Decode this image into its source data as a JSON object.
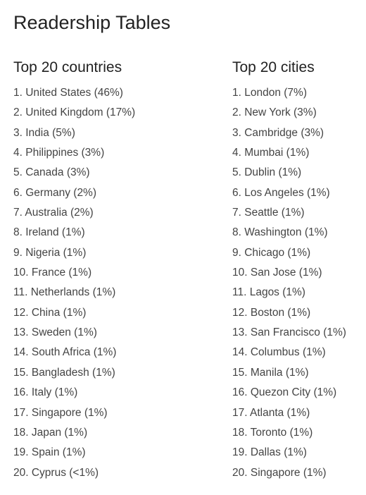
{
  "page": {
    "title": "Readership Tables"
  },
  "countries": {
    "heading": "Top 20 countries",
    "items": [
      "1. United States (46%)",
      "2. United Kingdom (17%)",
      "3. India (5%)",
      "4. Philippines (3%)",
      "5. Canada (3%)",
      "6. Germany (2%)",
      "7. Australia (2%)",
      "8. Ireland (1%)",
      "9. Nigeria (1%)",
      "10. France (1%)",
      "11. Netherlands (1%)",
      "12. China (1%)",
      "13. Sweden (1%)",
      "14. South Africa (1%)",
      "15. Bangladesh (1%)",
      "16. Italy (1%)",
      "17. Singapore (1%)",
      "18. Japan (1%)",
      "19. Spain (1%)",
      "20. Cyprus (<1%)"
    ]
  },
  "cities": {
    "heading": "Top 20 cities",
    "items": [
      "1. London (7%)",
      "2. New York (3%)",
      "3. Cambridge (3%)",
      "4. Mumbai (1%)",
      "5. Dublin (1%)",
      "6. Los Angeles (1%)",
      "7. Seattle (1%)",
      "8. Washington (1%)",
      "9. Chicago (1%)",
      "10. San Jose (1%)",
      "11. Lagos (1%)",
      "12. Boston (1%)",
      "13. San Francisco (1%)",
      "14. Columbus (1%)",
      "15. Manila (1%)",
      "16. Quezon City (1%)",
      "17. Atlanta (1%)",
      "18. Toronto (1%)",
      "19. Dallas (1%)",
      "20. Singapore (1%)"
    ]
  }
}
